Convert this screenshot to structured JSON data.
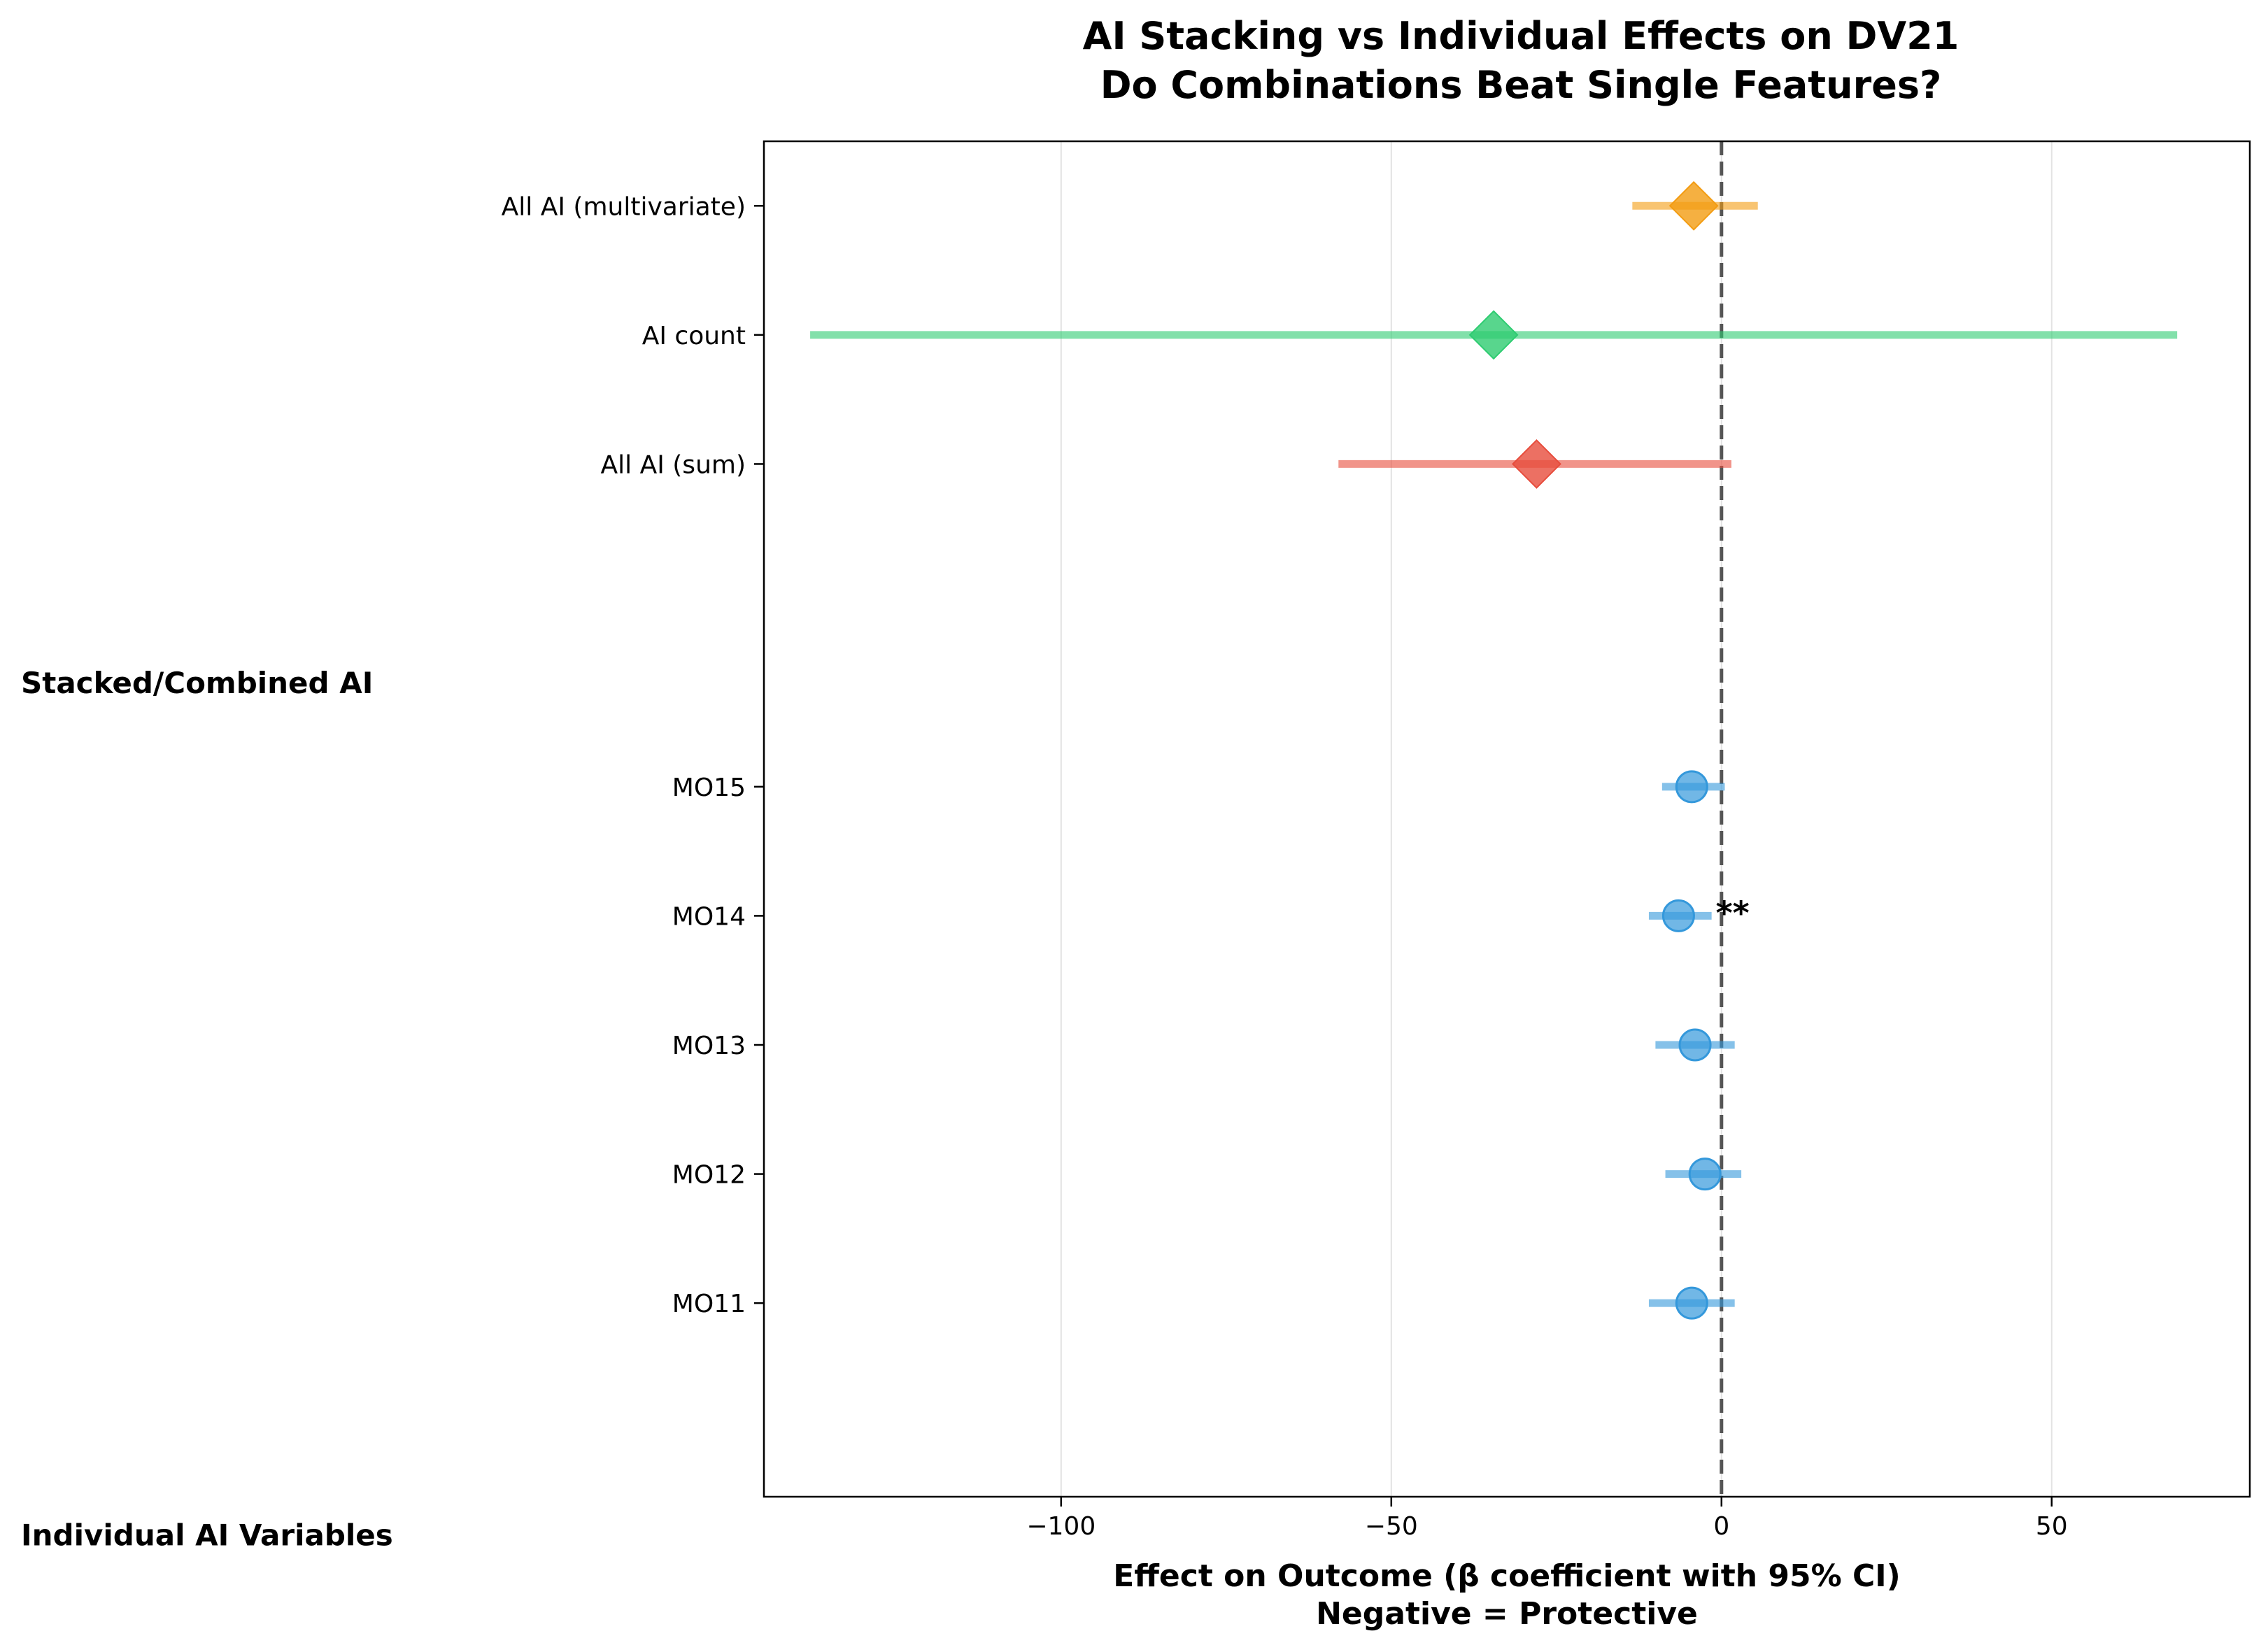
{
  "chart_data": {
    "type": "scatter",
    "title_lines": [
      "AI Stacking vs Individual Effects on DV21",
      "Do Combinations Beat Single Features?"
    ],
    "xlabel_lines": [
      "Effect on Outcome (β coefficient with 95% CI)",
      "Negative = Protective"
    ],
    "xlim": [
      -145,
      80
    ],
    "ylim": [
      -0.5,
      10
    ],
    "xticks": [
      -100,
      -50,
      0,
      50
    ],
    "xtick_labels": [
      "−100",
      "−50",
      "0",
      "50"
    ],
    "grid": "vertical",
    "reference_line": 0,
    "groups": [
      {
        "label": "Stacked/Combined AI",
        "y": 5.8
      },
      {
        "label": "Individual AI Variables",
        "y": -0.8
      }
    ],
    "points": [
      {
        "label": "MO11",
        "y": 1,
        "estimate": -4.5,
        "ci": [
          -11,
          2
        ],
        "color": "#3498db",
        "marker": "circle",
        "annotation": ""
      },
      {
        "label": "MO12",
        "y": 2,
        "estimate": -2.5,
        "ci": [
          -8.5,
          3
        ],
        "color": "#3498db",
        "marker": "circle",
        "annotation": ""
      },
      {
        "label": "MO13",
        "y": 3,
        "estimate": -4,
        "ci": [
          -10,
          2
        ],
        "color": "#3498db",
        "marker": "circle",
        "annotation": ""
      },
      {
        "label": "MO14",
        "y": 4,
        "estimate": -6.5,
        "ci": [
          -11,
          -1.5
        ],
        "color": "#3498db",
        "marker": "circle",
        "annotation": "**"
      },
      {
        "label": "MO15",
        "y": 5,
        "estimate": -4.5,
        "ci": [
          -9,
          0.5
        ],
        "color": "#3498db",
        "marker": "circle",
        "annotation": ""
      },
      {
        "label": "All AI (sum)",
        "y": 7.5,
        "estimate": -28,
        "ci": [
          -58,
          1.5
        ],
        "color": "#e74c3c",
        "marker": "diamond",
        "annotation": ""
      },
      {
        "label": "AI count",
        "y": 8.5,
        "estimate": -34.5,
        "ci": [
          -138,
          69
        ],
        "color": "#2ecc71",
        "marker": "diamond",
        "annotation": ""
      },
      {
        "label": "All AI (multivariate)",
        "y": 9.5,
        "estimate": -4.2,
        "ci": [
          -13.5,
          5.5
        ],
        "color": "#f39c12",
        "marker": "diamond",
        "annotation": ""
      }
    ]
  }
}
